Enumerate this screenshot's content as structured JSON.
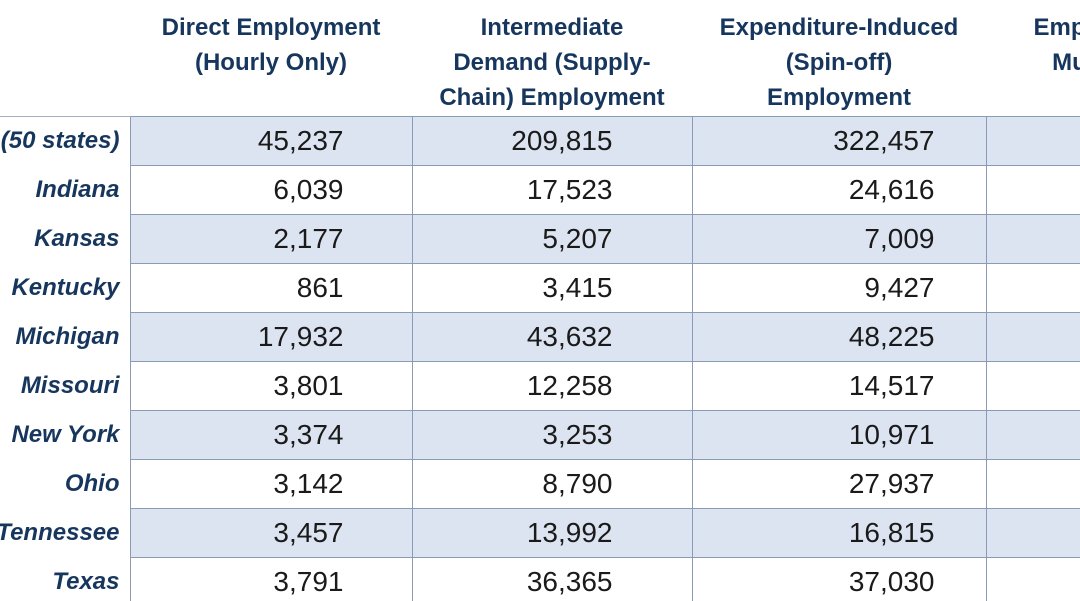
{
  "colors": {
    "header_text": "#17365D",
    "row_label_text": "#17365D",
    "value_text": "#1A1A1A",
    "band_fill": "#DCE4F1",
    "grid_border": "#8A9BB5",
    "background": "#FFFFFF"
  },
  "table": {
    "columns": [
      {
        "label": ""
      },
      {
        "label": "Direct Employment\n(Hourly Only)"
      },
      {
        "label": "Intermediate\nDemand (Supply-\nChain) Employment"
      },
      {
        "label": "Expenditure-Induced\n(Spin-off)\nEmployment"
      },
      {
        "label": "Employment\nMultiplier"
      }
    ],
    "rows": [
      {
        "label": "(50 states)",
        "banded": true,
        "values": [
          "45,237",
          "209,815",
          "322,457",
          ""
        ]
      },
      {
        "label": "Indiana",
        "banded": false,
        "values": [
          "6,039",
          "17,523",
          "24,616",
          ""
        ]
      },
      {
        "label": "Kansas",
        "banded": true,
        "values": [
          "2,177",
          "5,207",
          "7,009",
          ""
        ]
      },
      {
        "label": "Kentucky",
        "banded": false,
        "values": [
          "861",
          "3,415",
          "9,427",
          ""
        ]
      },
      {
        "label": "Michigan",
        "banded": true,
        "values": [
          "17,932",
          "43,632",
          "48,225",
          ""
        ]
      },
      {
        "label": "Missouri",
        "banded": false,
        "values": [
          "3,801",
          "12,258",
          "14,517",
          ""
        ]
      },
      {
        "label": "New York",
        "banded": true,
        "values": [
          "3,374",
          "3,253",
          "10,971",
          ""
        ]
      },
      {
        "label": "Ohio",
        "banded": false,
        "values": [
          "3,142",
          "8,790",
          "27,937",
          ""
        ]
      },
      {
        "label": "Tennessee",
        "banded": true,
        "values": [
          "3,457",
          "13,992",
          "16,815",
          ""
        ]
      },
      {
        "label": "Texas",
        "banded": false,
        "values": [
          "3,791",
          "36,365",
          "37,030",
          ""
        ]
      }
    ]
  },
  "chart_data": {
    "type": "table",
    "title": "",
    "categories": [
      "(50 states)",
      "Indiana",
      "Kansas",
      "Kentucky",
      "Michigan",
      "Missouri",
      "New York",
      "Ohio",
      "Tennessee",
      "Texas"
    ],
    "series": [
      {
        "name": "Direct Employment (Hourly Only)",
        "values": [
          45237,
          6039,
          2177,
          861,
          17932,
          3801,
          3374,
          3142,
          3457,
          3791
        ]
      },
      {
        "name": "Intermediate Demand (Supply-Chain) Employment",
        "values": [
          209815,
          17523,
          5207,
          3415,
          43632,
          12258,
          3253,
          8790,
          13992,
          36365
        ]
      },
      {
        "name": "Expenditure-Induced (Spin-off) Employment",
        "values": [
          322457,
          24616,
          7009,
          9427,
          48225,
          14517,
          10971,
          27937,
          16815,
          37030
        ]
      },
      {
        "name": "Employment Multiplier (clipped off-screen)",
        "values": []
      }
    ],
    "layout_hints": {
      "row_banding": "alternating light blue starting with first data row",
      "left_label_column_clipped": true,
      "right_column_clipped": true,
      "grid": true
    }
  }
}
